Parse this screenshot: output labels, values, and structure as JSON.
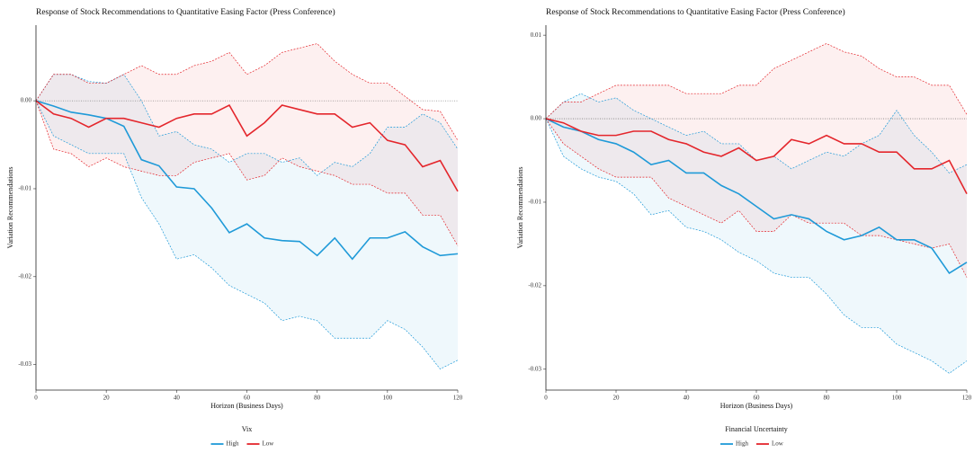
{
  "chart_data": [
    {
      "type": "line",
      "title": "Response of Stock Recommendations to Quantitative Easing Factor (Press Conference)",
      "x_label": "Horizon (Business Days)",
      "y_label": "Variation Recommendations",
      "legend_title": "Vix",
      "x": [
        0,
        5,
        10,
        15,
        20,
        25,
        30,
        35,
        40,
        45,
        50,
        55,
        60,
        65,
        70,
        75,
        80,
        85,
        90,
        95,
        100,
        105,
        110,
        115,
        120
      ],
      "series": [
        {
          "name": "High",
          "color": "#1f9ad8",
          "values": [
            0,
            -0.0006,
            -0.0013,
            -0.0016,
            -0.002,
            -0.0029,
            -0.0067,
            -0.0074,
            -0.0098,
            -0.01,
            -0.0122,
            -0.015,
            -0.014,
            -0.0156,
            -0.0159,
            -0.016,
            -0.0176,
            -0.0156,
            -0.018,
            -0.0156,
            -0.0156,
            -0.0149,
            -0.0166,
            -0.0176,
            -0.0174
          ],
          "upper": [
            0,
            0.003,
            0.003,
            0.0022,
            0.002,
            0.003,
            0,
            -0.004,
            -0.0035,
            -0.005,
            -0.0055,
            -0.007,
            -0.006,
            -0.006,
            -0.007,
            -0.0065,
            -0.0085,
            -0.007,
            -0.0075,
            -0.006,
            -0.003,
            -0.003,
            -0.0015,
            -0.0025,
            -0.0055
          ],
          "lower": [
            0,
            -0.004,
            -0.005,
            -0.006,
            -0.006,
            -0.006,
            -0.011,
            -0.014,
            -0.018,
            -0.0175,
            -0.019,
            -0.021,
            -0.022,
            -0.023,
            -0.025,
            -0.0245,
            -0.025,
            -0.027,
            -0.027,
            -0.027,
            -0.025,
            -0.026,
            -0.028,
            -0.0305,
            -0.0295
          ]
        },
        {
          "name": "Low",
          "color": "#e4262c",
          "values": [
            0,
            -0.0015,
            -0.002,
            -0.003,
            -0.002,
            -0.002,
            -0.0025,
            -0.003,
            -0.002,
            -0.0015,
            -0.0015,
            -0.0005,
            -0.004,
            -0.0025,
            -0.0005,
            -0.001,
            -0.0015,
            -0.0015,
            -0.003,
            -0.0025,
            -0.0045,
            -0.005,
            -0.0075,
            -0.0068,
            -0.0103
          ],
          "upper": [
            0,
            0.003,
            0.003,
            0.002,
            0.002,
            0.003,
            0.004,
            0.003,
            0.003,
            0.004,
            0.0045,
            0.0055,
            0.003,
            0.004,
            0.0055,
            0.006,
            0.0065,
            0.0045,
            0.003,
            0.002,
            0.002,
            0.0005,
            -0.001,
            -0.0012,
            -0.0045
          ],
          "lower": [
            0,
            -0.0055,
            -0.006,
            -0.0075,
            -0.0065,
            -0.0075,
            -0.008,
            -0.0085,
            -0.0085,
            -0.007,
            -0.0065,
            -0.006,
            -0.009,
            -0.0085,
            -0.0065,
            -0.0075,
            -0.008,
            -0.0085,
            -0.0095,
            -0.0095,
            -0.0105,
            -0.0105,
            -0.013,
            -0.013,
            -0.0165
          ]
        }
      ],
      "xlim": [
        0,
        120
      ],
      "xticks": [
        0,
        20,
        40,
        60,
        80,
        100,
        120
      ],
      "ylim": [
        -0.0329,
        0.0086
      ],
      "yticks": [
        {
          "value": 0,
          "label": "0.00"
        },
        -0.01,
        -0.02,
        -0.03
      ],
      "reference_line": 0,
      "legend_position": "bottom"
    },
    {
      "type": "line",
      "title": "Response of Stock Recommendations to Quantitative Easing Factor (Press Conference)",
      "x_label": "Horizon (Business Days)",
      "y_label": "Variation Recommendations",
      "legend_title": "Financial Uncertainty",
      "x": [
        0,
        5,
        10,
        15,
        20,
        25,
        30,
        35,
        40,
        45,
        50,
        55,
        60,
        65,
        70,
        75,
        80,
        85,
        90,
        95,
        100,
        105,
        110,
        115,
        120
      ],
      "series": [
        {
          "name": "High",
          "color": "#1f9ad8",
          "values": [
            0,
            -0.001,
            -0.0015,
            -0.0025,
            -0.003,
            -0.004,
            -0.0055,
            -0.005,
            -0.0065,
            -0.0065,
            -0.008,
            -0.009,
            -0.0105,
            -0.012,
            -0.0115,
            -0.012,
            -0.0135,
            -0.0145,
            -0.014,
            -0.013,
            -0.0145,
            -0.0145,
            -0.0155,
            -0.0185,
            -0.0172
          ],
          "upper": [
            0,
            0.002,
            0.003,
            0.002,
            0.0025,
            0.001,
            0,
            -0.001,
            -0.002,
            -0.0015,
            -0.003,
            -0.003,
            -0.005,
            -0.0045,
            -0.006,
            -0.005,
            -0.004,
            -0.0045,
            -0.003,
            -0.002,
            0.001,
            -0.002,
            -0.004,
            -0.0065,
            -0.0055
          ],
          "lower": [
            0,
            -0.0045,
            -0.006,
            -0.007,
            -0.0075,
            -0.009,
            -0.0115,
            -0.011,
            -0.013,
            -0.0135,
            -0.0145,
            -0.016,
            -0.017,
            -0.0185,
            -0.019,
            -0.019,
            -0.021,
            -0.0235,
            -0.025,
            -0.025,
            -0.027,
            -0.028,
            -0.029,
            -0.0305,
            -0.029
          ]
        },
        {
          "name": "Low",
          "color": "#e4262c",
          "values": [
            0,
            -0.0005,
            -0.0015,
            -0.002,
            -0.002,
            -0.0015,
            -0.0015,
            -0.0025,
            -0.003,
            -0.004,
            -0.0045,
            -0.0035,
            -0.005,
            -0.0045,
            -0.0025,
            -0.003,
            -0.002,
            -0.003,
            -0.003,
            -0.004,
            -0.004,
            -0.006,
            -0.006,
            -0.005,
            -0.009
          ],
          "upper": [
            0,
            0.002,
            0.002,
            0.003,
            0.004,
            0.004,
            0.004,
            0.004,
            0.003,
            0.003,
            0.003,
            0.004,
            0.004,
            0.006,
            0.007,
            0.008,
            0.009,
            0.008,
            0.0075,
            0.006,
            0.005,
            0.005,
            0.004,
            0.004,
            0.0005
          ],
          "lower": [
            0,
            -0.003,
            -0.0045,
            -0.006,
            -0.007,
            -0.007,
            -0.007,
            -0.0095,
            -0.0105,
            -0.0115,
            -0.0125,
            -0.011,
            -0.0135,
            -0.0135,
            -0.0115,
            -0.0125,
            -0.0125,
            -0.0125,
            -0.014,
            -0.014,
            -0.0145,
            -0.015,
            -0.0155,
            -0.015,
            -0.019
          ]
        }
      ],
      "xlim": [
        0,
        120
      ],
      "xticks": [
        0,
        20,
        40,
        60,
        80,
        100,
        120
      ],
      "ylim": [
        -0.0325,
        0.0112
      ],
      "yticks": [
        0.01,
        {
          "value": 0,
          "label": "0.00"
        },
        -0.01,
        -0.02,
        -0.03
      ],
      "reference_line": 0,
      "legend_position": "bottom"
    }
  ]
}
